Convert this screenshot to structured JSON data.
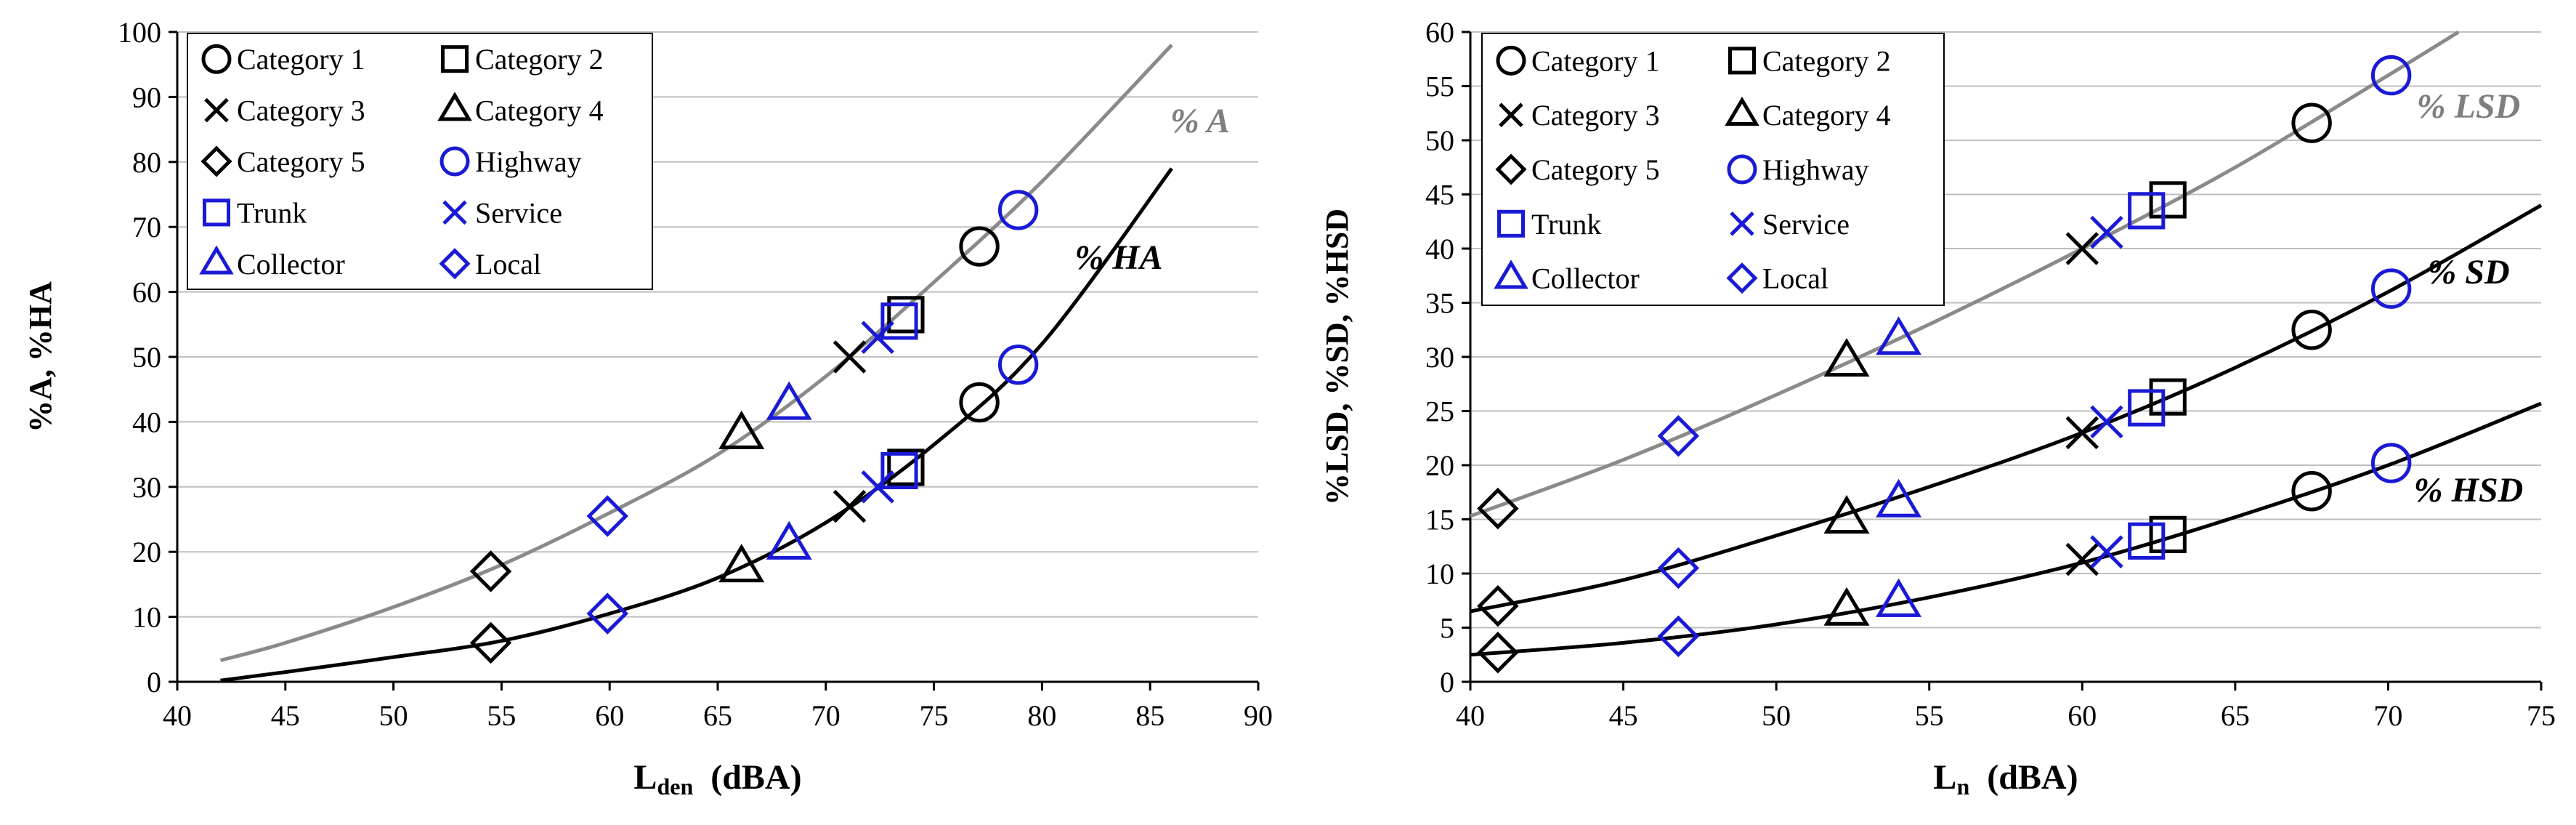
{
  "colors": {
    "black": "#000000",
    "blue": "#1a1ad6",
    "gray_curve": "#8a8a8a",
    "gray_label": "#7f7f7f",
    "grid": "#bfbfbf"
  },
  "legend": [
    {
      "label": "Category 1",
      "marker": "circle",
      "color": "black"
    },
    {
      "label": "Category 2",
      "marker": "square",
      "color": "black"
    },
    {
      "label": "Category 3",
      "marker": "x",
      "color": "black"
    },
    {
      "label": "Category 4",
      "marker": "triangle",
      "color": "black"
    },
    {
      "label": "Category 5",
      "marker": "diamond",
      "color": "black"
    },
    {
      "label": "Highway",
      "marker": "circle",
      "color": "blue"
    },
    {
      "label": "Trunk",
      "marker": "square",
      "color": "blue"
    },
    {
      "label": "Service",
      "marker": "x",
      "color": "blue"
    },
    {
      "label": "Collector",
      "marker": "triangle",
      "color": "blue"
    },
    {
      "label": "Local",
      "marker": "diamond",
      "color": "blue"
    }
  ],
  "chart_data": [
    {
      "type": "line",
      "title": "",
      "xlabel": "Lden (dBA)",
      "xlabel_main": "L",
      "xlabel_sub": "den",
      "xlabel_unit": "(dBA)",
      "ylabel": "%A, %HA",
      "xlim": [
        40,
        90
      ],
      "ylim": [
        0,
        100
      ],
      "xticks": [
        40,
        45,
        50,
        55,
        60,
        65,
        70,
        75,
        80,
        85,
        90
      ],
      "yticks": [
        0,
        10,
        20,
        30,
        40,
        50,
        60,
        70,
        80,
        90,
        100
      ],
      "curves": [
        {
          "name": "% A",
          "color": "gray_curve",
          "label_color": "gray_label",
          "x": [
            42,
            45,
            50,
            55,
            60,
            65,
            70,
            75,
            80,
            86
          ],
          "y": [
            3.3,
            6.0,
            11.5,
            18.0,
            26.0,
            35.0,
            47.0,
            61.5,
            77.0,
            98.0
          ]
        },
        {
          "name": "% HA",
          "color": "black",
          "label_color": "black",
          "x": [
            42,
            45,
            50,
            55,
            60,
            65,
            70,
            75,
            80,
            86
          ],
          "y": [
            0.2,
            1.5,
            3.8,
            6.3,
            10.5,
            16.0,
            24.5,
            36.5,
            52.0,
            79.0
          ]
        }
      ],
      "points": [
        {
          "series": "Category 1",
          "x": 77.1,
          "y": 67
        },
        {
          "series": "Category 2",
          "x": 73.7,
          "y": 56.5
        },
        {
          "series": "Category 3",
          "x": 71.1,
          "y": 50
        },
        {
          "series": "Category 4",
          "x": 66.1,
          "y": 38
        },
        {
          "series": "Category 5",
          "x": 54.5,
          "y": 17
        },
        {
          "series": "Highway",
          "x": 78.9,
          "y": 72.6
        },
        {
          "series": "Trunk",
          "x": 73.4,
          "y": 55.5
        },
        {
          "series": "Service",
          "x": 72.4,
          "y": 53
        },
        {
          "series": "Collector",
          "x": 68.3,
          "y": 42.5
        },
        {
          "series": "Local",
          "x": 59.9,
          "y": 25.5
        },
        {
          "series": "Category 1",
          "x": 77.1,
          "y": 43
        },
        {
          "series": "Category 2",
          "x": 73.7,
          "y": 33
        },
        {
          "series": "Category 3",
          "x": 71.1,
          "y": 27
        },
        {
          "series": "Category 4",
          "x": 66.1,
          "y": 17.5
        },
        {
          "series": "Category 5",
          "x": 54.5,
          "y": 6
        },
        {
          "series": "Highway",
          "x": 78.9,
          "y": 48.8
        },
        {
          "series": "Trunk",
          "x": 73.4,
          "y": 32.5
        },
        {
          "series": "Service",
          "x": 72.4,
          "y": 30
        },
        {
          "series": "Collector",
          "x": 68.3,
          "y": 21
        },
        {
          "series": "Local",
          "x": 59.9,
          "y": 10.5
        }
      ]
    },
    {
      "type": "line",
      "title": "",
      "xlabel": "Ln (dBA)",
      "xlabel_main": "L",
      "xlabel_sub": "n",
      "xlabel_unit": "(dBA)",
      "ylabel": "%LSD, %SD, %HSD",
      "xlim": [
        40,
        75
      ],
      "ylim": [
        0,
        60
      ],
      "xticks": [
        40,
        45,
        50,
        55,
        60,
        65,
        70,
        75
      ],
      "yticks": [
        0,
        5,
        10,
        15,
        20,
        25,
        30,
        35,
        40,
        45,
        50,
        55,
        60
      ],
      "curves": [
        {
          "name": "% LSD",
          "color": "gray_curve",
          "label_color": "gray_label",
          "x": [
            40,
            45,
            50,
            55,
            60,
            65,
            70,
            72.3
          ],
          "y": [
            15.3,
            20.5,
            26.5,
            33.0,
            40.0,
            47.5,
            56.0,
            60.0
          ]
        },
        {
          "name": "% SD",
          "color": "black",
          "label_color": "black",
          "x": [
            40,
            45,
            50,
            55,
            60,
            65,
            70,
            75
          ],
          "y": [
            6.5,
            9.4,
            13.5,
            18.0,
            23.0,
            29.0,
            36.0,
            44.0
          ]
        },
        {
          "name": "% HSD",
          "color": "black",
          "label_color": "black",
          "x": [
            40,
            45,
            50,
            55,
            60,
            65,
            70,
            75
          ],
          "y": [
            2.5,
            3.6,
            5.3,
            7.8,
            11.0,
            15.2,
            20.0,
            25.7
          ]
        }
      ],
      "points": [
        {
          "series": "Category 1",
          "x": 67.5,
          "y": 51.6
        },
        {
          "series": "Category 2",
          "x": 62.8,
          "y": 44.5
        },
        {
          "series": "Category 3",
          "x": 60,
          "y": 40
        },
        {
          "series": "Category 4",
          "x": 52.3,
          "y": 29.5
        },
        {
          "series": "Category 5",
          "x": 40.9,
          "y": 16
        },
        {
          "series": "Highway",
          "x": 70.1,
          "y": 56
        },
        {
          "series": "Trunk",
          "x": 62.1,
          "y": 43.5
        },
        {
          "series": "Service",
          "x": 60.8,
          "y": 41.5
        },
        {
          "series": "Collector",
          "x": 54,
          "y": 31.5
        },
        {
          "series": "Local",
          "x": 46.8,
          "y": 22.7
        },
        {
          "series": "Category 1",
          "x": 67.5,
          "y": 32.5
        },
        {
          "series": "Category 2",
          "x": 62.8,
          "y": 26.3
        },
        {
          "series": "Category 3",
          "x": 60,
          "y": 23
        },
        {
          "series": "Category 4",
          "x": 52.3,
          "y": 15
        },
        {
          "series": "Category 5",
          "x": 40.9,
          "y": 7
        },
        {
          "series": "Highway",
          "x": 70.1,
          "y": 36.3
        },
        {
          "series": "Trunk",
          "x": 62.1,
          "y": 25.3
        },
        {
          "series": "Service",
          "x": 60.8,
          "y": 24
        },
        {
          "series": "Collector",
          "x": 54,
          "y": 16.5
        },
        {
          "series": "Local",
          "x": 46.8,
          "y": 10.5
        },
        {
          "series": "Category 1",
          "x": 67.5,
          "y": 17.6
        },
        {
          "series": "Category 2",
          "x": 62.8,
          "y": 13.6
        },
        {
          "series": "Category 3",
          "x": 60,
          "y": 11.3
        },
        {
          "series": "Category 4",
          "x": 52.3,
          "y": 6.5
        },
        {
          "series": "Category 5",
          "x": 40.9,
          "y": 2.7
        },
        {
          "series": "Highway",
          "x": 70.1,
          "y": 20.2
        },
        {
          "series": "Trunk",
          "x": 62.1,
          "y": 13
        },
        {
          "series": "Service",
          "x": 60.8,
          "y": 12
        },
        {
          "series": "Collector",
          "x": 54,
          "y": 7.3
        },
        {
          "series": "Local",
          "x": 46.8,
          "y": 4.2
        }
      ]
    }
  ]
}
